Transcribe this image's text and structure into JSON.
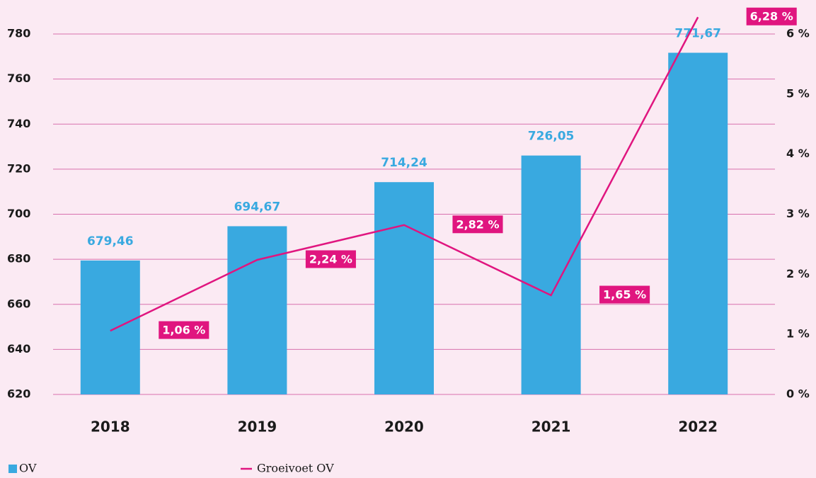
{
  "chart_data": {
    "type": "bar",
    "categories": [
      "2018",
      "2019",
      "2020",
      "2021",
      "2022"
    ],
    "series": [
      {
        "name": "OV",
        "type": "bar",
        "color": "#39a9e0",
        "values": [
          679.46,
          694.67,
          714.24,
          726.05,
          771.67
        ],
        "value_labels": [
          "679,46",
          "694,67",
          "714,24",
          "726,05",
          "771,67"
        ]
      },
      {
        "name": "Groeivoet OV",
        "type": "line",
        "axis": "y2",
        "color": "#e0157f",
        "values": [
          1.06,
          2.24,
          2.82,
          1.65,
          6.28
        ],
        "value_labels": [
          "1,06 %",
          "2,24 %",
          "2,82 %",
          "1,65 %",
          "6,28 %"
        ]
      }
    ],
    "ylim": [
      620,
      780
    ],
    "yticks": [
      620,
      640,
      660,
      680,
      700,
      720,
      740,
      760,
      780
    ],
    "y2lim": [
      0,
      6
    ],
    "y2ticks": [
      {
        "value": 0,
        "label": "0 %"
      },
      {
        "value": 1,
        "label": "1 %"
      },
      {
        "value": 2,
        "label": "2 %"
      },
      {
        "value": 3,
        "label": "3 %"
      },
      {
        "value": 4,
        "label": "4 %"
      },
      {
        "value": 5,
        "label": "5 %"
      },
      {
        "value": 6,
        "label": "6 %"
      }
    ],
    "grid": true,
    "legend": "bottom"
  }
}
